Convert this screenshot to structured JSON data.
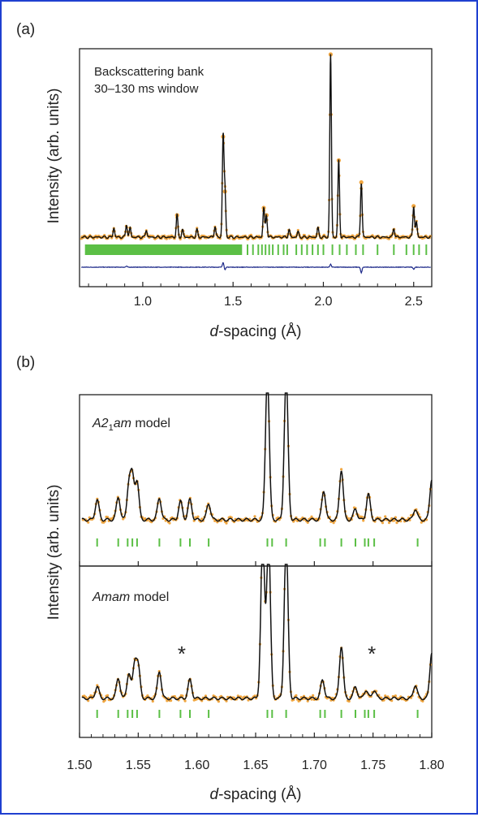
{
  "colors": {
    "border": "#1f3fd0",
    "observed": "#f0a640",
    "calculated": "#111111",
    "ticks": "#5bbf45",
    "difference": "#1e2a8a",
    "asterisk": "#2a3590"
  },
  "chart_data": [
    {
      "panel_label": "(a)",
      "type": "line",
      "annotation_lines": [
        "Backscattering bank",
        "30–130 ms window"
      ],
      "xlabel": "-spacing (Å)",
      "xlabel_italic_prefix": "d",
      "ylabel": "Intensity (arb. units)",
      "xlim": [
        0.65,
        2.6
      ],
      "x_ticks": [
        1.0,
        1.5,
        2.0,
        2.5
      ],
      "x_tick_labels": [
        "1.0",
        "1.5",
        "2.0",
        "2.5"
      ],
      "y_ticks": "none",
      "background": 0.14,
      "series": [
        {
          "kind": "peaks",
          "peaks": [
            [
              0.84,
              0.05
            ],
            [
              0.91,
              0.07
            ],
            [
              0.93,
              0.05
            ],
            [
              1.02,
              0.04
            ],
            [
              1.19,
              0.12
            ],
            [
              1.22,
              0.04
            ],
            [
              1.3,
              0.04
            ],
            [
              1.4,
              0.06
            ],
            [
              1.445,
              0.55
            ],
            [
              1.455,
              0.25
            ],
            [
              1.67,
              0.16
            ],
            [
              1.685,
              0.12
            ],
            [
              1.81,
              0.04
            ],
            [
              1.86,
              0.03
            ],
            [
              1.97,
              0.05
            ],
            [
              2.04,
              1.0
            ],
            [
              2.085,
              0.42
            ],
            [
              2.21,
              0.3
            ],
            [
              2.39,
              0.05
            ],
            [
              2.5,
              0.17
            ],
            [
              2.515,
              0.08
            ]
          ]
        }
      ],
      "reflection_ticks": {
        "dense_band": [
          0.68,
          1.55
        ],
        "positions": [
          1.58,
          1.61,
          1.64,
          1.66,
          1.68,
          1.7,
          1.72,
          1.75,
          1.78,
          1.8,
          1.85,
          1.88,
          1.91,
          1.94,
          1.97,
          2.0,
          2.05,
          2.09,
          2.13,
          2.18,
          2.22,
          2.3,
          2.39,
          2.46,
          2.5,
          2.53,
          2.57
        ]
      },
      "difference": {
        "spikes": [
          [
            1.445,
            0.1
          ],
          [
            1.455,
            -0.05
          ],
          [
            2.04,
            0.06
          ],
          [
            2.21,
            -0.12
          ],
          [
            2.5,
            -0.04
          ],
          [
            0.91,
            0.02
          ]
        ]
      }
    },
    {
      "panel_label": "(b)",
      "type": "line",
      "xlabel": "-spacing (Å)",
      "xlabel_italic_prefix": "d",
      "ylabel": "Intensity (arb. units)",
      "xlim": [
        1.5,
        1.8
      ],
      "x_ticks": [
        1.5,
        1.55,
        1.6,
        1.65,
        1.7,
        1.75,
        1.8
      ],
      "x_tick_labels": [
        "1.50",
        "1.55",
        "1.60",
        "1.65",
        "1.70",
        "1.75",
        "1.80"
      ],
      "subplots": [
        {
          "model_label_italic": "A2",
          "model_label_sub": "1",
          "model_label_italic2": "am",
          "model_label_rest": " model",
          "peaks": [
            [
              1.515,
              0.22
            ],
            [
              1.533,
              0.25
            ],
            [
              1.542,
              0.38
            ],
            [
              1.545,
              0.45
            ],
            [
              1.549,
              0.42
            ],
            [
              1.568,
              0.24
            ],
            [
              1.586,
              0.2
            ],
            [
              1.594,
              0.22
            ],
            [
              1.61,
              0.18
            ],
            [
              1.66,
              1.6
            ],
            [
              1.676,
              1.6
            ],
            [
              1.708,
              0.32
            ],
            [
              1.723,
              0.55
            ],
            [
              1.735,
              0.12
            ],
            [
              1.746,
              0.28
            ],
            [
              1.786,
              0.12
            ],
            [
              1.8,
              0.45
            ]
          ],
          "reflection_ticks": [
            1.515,
            1.533,
            1.541,
            1.545,
            1.549,
            1.568,
            1.586,
            1.594,
            1.61,
            1.66,
            1.664,
            1.676,
            1.705,
            1.709,
            1.723,
            1.735,
            1.743,
            1.746,
            1.751,
            1.788
          ]
        },
        {
          "model_label_italic": "Amam",
          "model_label_rest": " model",
          "asterisk_text": "*",
          "asterisk_x": [
            1.587,
            1.749
          ],
          "peaks": [
            [
              1.515,
              0.14
            ],
            [
              1.533,
              0.24
            ],
            [
              1.542,
              0.3
            ],
            [
              1.547,
              0.4
            ],
            [
              1.55,
              0.36
            ],
            [
              1.568,
              0.32
            ],
            [
              1.594,
              0.22
            ],
            [
              1.656,
              1.9
            ],
            [
              1.661,
              1.9
            ],
            [
              1.676,
              1.9
            ],
            [
              1.707,
              0.22
            ],
            [
              1.723,
              0.62
            ],
            [
              1.735,
              0.14
            ],
            [
              1.744,
              0.1
            ],
            [
              1.751,
              0.1
            ],
            [
              1.786,
              0.16
            ],
            [
              1.8,
              0.55
            ]
          ],
          "reflection_ticks": [
            1.515,
            1.533,
            1.541,
            1.545,
            1.549,
            1.568,
            1.586,
            1.594,
            1.61,
            1.66,
            1.664,
            1.676,
            1.705,
            1.709,
            1.723,
            1.735,
            1.743,
            1.746,
            1.751,
            1.788
          ]
        }
      ]
    }
  ]
}
